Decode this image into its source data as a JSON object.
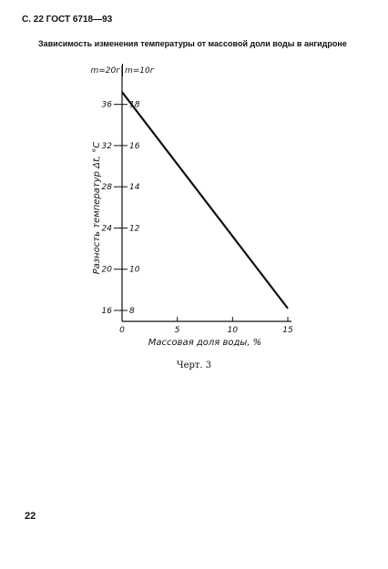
{
  "page": {
    "header": "С. 22 ГОСТ 6718—93",
    "heading": "Зависимость изменения температуры от массовой доли воды в ангидроне",
    "caption": "Черт. 3",
    "page_number": "22"
  },
  "chart_data": {
    "type": "line",
    "title": "",
    "xlabel": "Массовая доля воды, %",
    "ylabel": "Разность температур Δt, °С",
    "xlim": [
      0,
      15
    ],
    "x_ticks": [
      0,
      5,
      10,
      15
    ],
    "y_axes": [
      {
        "header": "m=20г",
        "ylim": [
          16,
          38
        ],
        "ticks": [
          16,
          20,
          24,
          28,
          32,
          36
        ]
      },
      {
        "header": "m=10г",
        "ylim": [
          8,
          19
        ],
        "ticks": [
          8,
          10,
          12,
          14,
          16,
          18
        ]
      }
    ],
    "series": [
      {
        "x": [
          0,
          15
        ],
        "y": [
          37.2,
          16.2
        ]
      }
    ],
    "grid": false,
    "line_color": "#111111"
  }
}
